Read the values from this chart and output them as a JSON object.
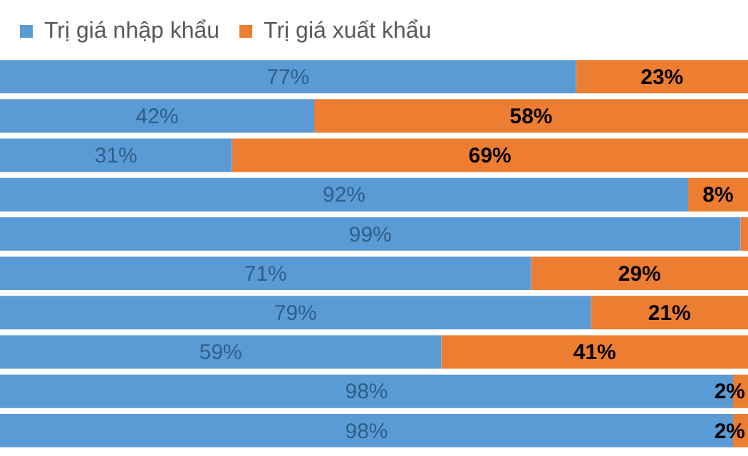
{
  "chart_data": {
    "type": "bar",
    "orientation": "horizontal",
    "stacked": true,
    "legend": "top left",
    "tick_labels": false,
    "grid": false,
    "categories": [
      null,
      null,
      null,
      null,
      null,
      null,
      null,
      null,
      null,
      null
    ],
    "series": [
      {
        "name": "Trị giá nhập khẩu",
        "color": "#5b9bd5",
        "values": [
          77,
          42,
          31,
          92,
          99,
          71,
          79,
          59,
          98,
          98
        ],
        "value_labels": [
          "77%",
          "42%",
          "31%",
          "92%",
          "99%",
          "71%",
          "79%",
          "59%",
          "98%",
          "98%"
        ]
      },
      {
        "name": "Trị giá xuất khẩu",
        "color": "#ed7d31",
        "values": [
          23,
          58,
          69,
          8,
          1,
          29,
          21,
          41,
          2,
          2
        ],
        "value_labels": [
          "23%",
          "58%",
          "69%",
          "8%",
          null,
          "29%",
          "21%",
          "41%",
          "2%",
          "2%"
        ]
      }
    ]
  }
}
